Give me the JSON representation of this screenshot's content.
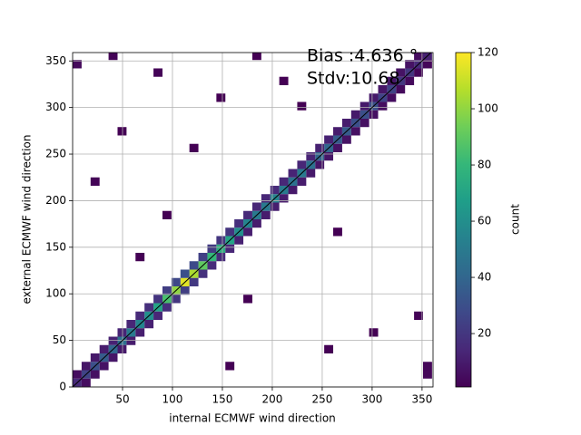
{
  "chart_data": {
    "type": "hist2d",
    "xlabel": "internal ECMWF wind direction",
    "ylabel": "external ECMWF wind direction",
    "annotations": [
      "Bias :4.636 °",
      "Stdv:10.68"
    ],
    "colorbar_label": "count",
    "cmap": "viridis",
    "grid": true,
    "reference_line": true,
    "xlim": [
      0,
      361
    ],
    "ylim": [
      0,
      359
    ],
    "xticks": [
      50,
      100,
      150,
      200,
      250,
      300,
      350
    ],
    "yticks": [
      0,
      50,
      100,
      150,
      200,
      250,
      300,
      350
    ],
    "clim": [
      1,
      120
    ],
    "cticks": [
      20,
      40,
      60,
      80,
      100,
      120
    ],
    "bin_width": 9,
    "cells": [
      [
        0,
        0,
        15
      ],
      [
        9,
        9,
        25
      ],
      [
        18,
        18,
        30
      ],
      [
        27,
        27,
        35
      ],
      [
        36,
        36,
        40
      ],
      [
        45,
        45,
        45
      ],
      [
        54,
        54,
        50
      ],
      [
        63,
        63,
        55
      ],
      [
        72,
        72,
        60
      ],
      [
        81,
        81,
        70
      ],
      [
        90,
        90,
        85
      ],
      [
        99,
        99,
        100
      ],
      [
        108,
        108,
        115
      ],
      [
        117,
        117,
        105
      ],
      [
        126,
        126,
        90
      ],
      [
        135,
        135,
        80
      ],
      [
        144,
        144,
        75
      ],
      [
        153,
        153,
        70
      ],
      [
        162,
        162,
        60
      ],
      [
        171,
        171,
        55
      ],
      [
        180,
        180,
        50
      ],
      [
        189,
        189,
        50
      ],
      [
        198,
        198,
        55
      ],
      [
        207,
        207,
        50
      ],
      [
        216,
        216,
        45
      ],
      [
        225,
        225,
        50
      ],
      [
        234,
        234,
        45
      ],
      [
        243,
        243,
        40
      ],
      [
        252,
        252,
        40
      ],
      [
        261,
        261,
        35
      ],
      [
        270,
        270,
        35
      ],
      [
        279,
        279,
        30
      ],
      [
        288,
        288,
        30
      ],
      [
        297,
        297,
        30
      ],
      [
        306,
        306,
        25
      ],
      [
        315,
        315,
        25
      ],
      [
        324,
        324,
        20
      ],
      [
        333,
        333,
        20
      ],
      [
        342,
        342,
        15
      ],
      [
        351,
        351,
        12
      ],
      [
        0,
        9,
        5
      ],
      [
        9,
        18,
        8
      ],
      [
        18,
        27,
        9
      ],
      [
        27,
        36,
        10
      ],
      [
        36,
        45,
        12
      ],
      [
        45,
        54,
        13
      ],
      [
        54,
        63,
        14
      ],
      [
        63,
        72,
        15
      ],
      [
        72,
        81,
        17
      ],
      [
        81,
        90,
        19
      ],
      [
        90,
        99,
        23
      ],
      [
        99,
        108,
        27
      ],
      [
        108,
        117,
        30
      ],
      [
        117,
        126,
        28
      ],
      [
        126,
        135,
        24
      ],
      [
        135,
        144,
        22
      ],
      [
        144,
        153,
        20
      ],
      [
        153,
        162,
        19
      ],
      [
        162,
        171,
        17
      ],
      [
        171,
        180,
        15
      ],
      [
        180,
        189,
        14
      ],
      [
        189,
        198,
        14
      ],
      [
        198,
        207,
        15
      ],
      [
        207,
        216,
        14
      ],
      [
        216,
        225,
        13
      ],
      [
        225,
        234,
        14
      ],
      [
        234,
        243,
        13
      ],
      [
        243,
        252,
        12
      ],
      [
        252,
        261,
        12
      ],
      [
        261,
        270,
        10
      ],
      [
        270,
        279,
        10
      ],
      [
        279,
        288,
        9
      ],
      [
        288,
        297,
        9
      ],
      [
        297,
        306,
        9
      ],
      [
        306,
        315,
        8
      ],
      [
        315,
        324,
        8
      ],
      [
        324,
        333,
        7
      ],
      [
        333,
        342,
        7
      ],
      [
        342,
        351,
        5
      ],
      [
        9,
        0,
        5
      ],
      [
        18,
        9,
        6
      ],
      [
        27,
        18,
        7
      ],
      [
        36,
        27,
        8
      ],
      [
        45,
        36,
        9
      ],
      [
        54,
        45,
        10
      ],
      [
        63,
        54,
        11
      ],
      [
        72,
        63,
        12
      ],
      [
        81,
        72,
        14
      ],
      [
        90,
        81,
        17
      ],
      [
        99,
        90,
        20
      ],
      [
        108,
        99,
        23
      ],
      [
        117,
        108,
        21
      ],
      [
        126,
        117,
        18
      ],
      [
        135,
        126,
        16
      ],
      [
        144,
        135,
        15
      ],
      [
        153,
        144,
        14
      ],
      [
        162,
        153,
        12
      ],
      [
        171,
        162,
        11
      ],
      [
        180,
        171,
        10
      ],
      [
        189,
        180,
        10
      ],
      [
        198,
        189,
        11
      ],
      [
        207,
        198,
        10
      ],
      [
        216,
        207,
        9
      ],
      [
        225,
        216,
        10
      ],
      [
        234,
        225,
        9
      ],
      [
        243,
        234,
        8
      ],
      [
        252,
        243,
        8
      ],
      [
        261,
        252,
        7
      ],
      [
        270,
        261,
        7
      ],
      [
        279,
        270,
        6
      ],
      [
        288,
        279,
        6
      ],
      [
        297,
        288,
        6
      ],
      [
        306,
        297,
        5
      ],
      [
        315,
        306,
        5
      ],
      [
        324,
        315,
        4
      ],
      [
        333,
        324,
        4
      ],
      [
        342,
        333,
        3
      ],
      [
        351,
        342,
        3
      ],
      [
        18,
        216,
        2
      ],
      [
        36,
        351,
        2
      ],
      [
        45,
        270,
        1
      ],
      [
        81,
        333,
        2
      ],
      [
        117,
        252,
        1
      ],
      [
        207,
        324,
        1
      ],
      [
        153,
        18,
        1
      ],
      [
        297,
        54,
        1
      ],
      [
        342,
        72,
        2
      ],
      [
        351,
        18,
        3
      ],
      [
        0,
        342,
        4
      ],
      [
        351,
        9,
        3
      ],
      [
        252,
        36,
        1
      ],
      [
        171,
        90,
        1
      ],
      [
        63,
        135,
        1
      ],
      [
        90,
        180,
        1
      ],
      [
        225,
        297,
        1
      ],
      [
        261,
        162,
        1
      ],
      [
        144,
        306,
        1
      ],
      [
        180,
        351,
        1
      ]
    ]
  }
}
